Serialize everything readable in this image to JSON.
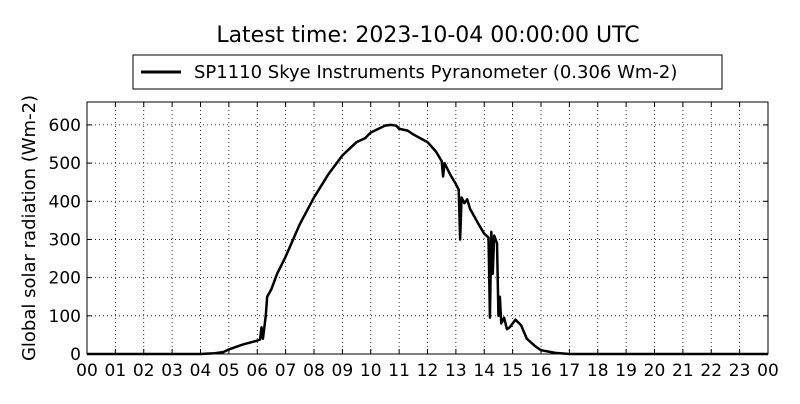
{
  "chart_data": {
    "type": "line",
    "title": "Latest time: 2023-10-04 00:00:00 UTC",
    "y_label": "Global solar radiation (Wm-2)",
    "legend_position": "top-center",
    "grid": true,
    "xlim": [
      0,
      24
    ],
    "xticks": [
      {
        "value": 0,
        "label": "00"
      },
      {
        "value": 1,
        "label": "01"
      },
      {
        "value": 2,
        "label": "02"
      },
      {
        "value": 3,
        "label": "03"
      },
      {
        "value": 4,
        "label": "04"
      },
      {
        "value": 5,
        "label": "05"
      },
      {
        "value": 6,
        "label": "06"
      },
      {
        "value": 7,
        "label": "07"
      },
      {
        "value": 8,
        "label": "08"
      },
      {
        "value": 9,
        "label": "09"
      },
      {
        "value": 10,
        "label": "10"
      },
      {
        "value": 11,
        "label": "11"
      },
      {
        "value": 12,
        "label": "12"
      },
      {
        "value": 13,
        "label": "13"
      },
      {
        "value": 14,
        "label": "14"
      },
      {
        "value": 15,
        "label": "15"
      },
      {
        "value": 16,
        "label": "16"
      },
      {
        "value": 17,
        "label": "17"
      },
      {
        "value": 18,
        "label": "18"
      },
      {
        "value": 19,
        "label": "19"
      },
      {
        "value": 20,
        "label": "20"
      },
      {
        "value": 21,
        "label": "21"
      },
      {
        "value": 22,
        "label": "22"
      },
      {
        "value": 23,
        "label": "23"
      },
      {
        "value": 24,
        "label": "00"
      }
    ],
    "ylim": [
      0,
      660
    ],
    "yticks": [
      0,
      100,
      200,
      300,
      400,
      500,
      600
    ],
    "x": [
      0,
      4.0,
      4.5,
      4.8,
      5.0,
      5.5,
      6.0,
      6.1,
      6.15,
      6.2,
      6.3,
      6.35,
      6.5,
      6.7,
      7.0,
      7.5,
      8.0,
      8.5,
      9.0,
      9.5,
      9.8,
      10.0,
      10.5,
      10.7,
      10.9,
      11.0,
      11.3,
      11.5,
      12.0,
      12.3,
      12.5,
      12.55,
      12.6,
      12.8,
      13.0,
      13.1,
      13.15,
      13.2,
      13.3,
      13.4,
      13.5,
      13.8,
      14.0,
      14.15,
      14.2,
      14.25,
      14.3,
      14.35,
      14.45,
      14.5,
      14.55,
      14.6,
      14.7,
      14.8,
      14.9,
      15.1,
      15.3,
      15.5,
      15.8,
      16.0,
      16.5,
      17.0,
      24
    ],
    "series": [
      {
        "name": "SP1110 Skye Instruments Pyranometer (0.306 Wm-2)",
        "color": "#000000",
        "values": [
          0,
          0,
          2,
          5,
          12,
          25,
          35,
          38,
          70,
          40,
          100,
          150,
          170,
          210,
          255,
          340,
          410,
          470,
          520,
          555,
          565,
          580,
          598,
          600,
          598,
          590,
          585,
          575,
          555,
          530,
          505,
          465,
          500,
          470,
          445,
          430,
          300,
          410,
          395,
          405,
          380,
          340,
          315,
          305,
          95,
          320,
          210,
          310,
          290,
          100,
          150,
          80,
          95,
          65,
          70,
          90,
          75,
          40,
          20,
          10,
          3,
          0,
          0
        ]
      }
    ]
  }
}
